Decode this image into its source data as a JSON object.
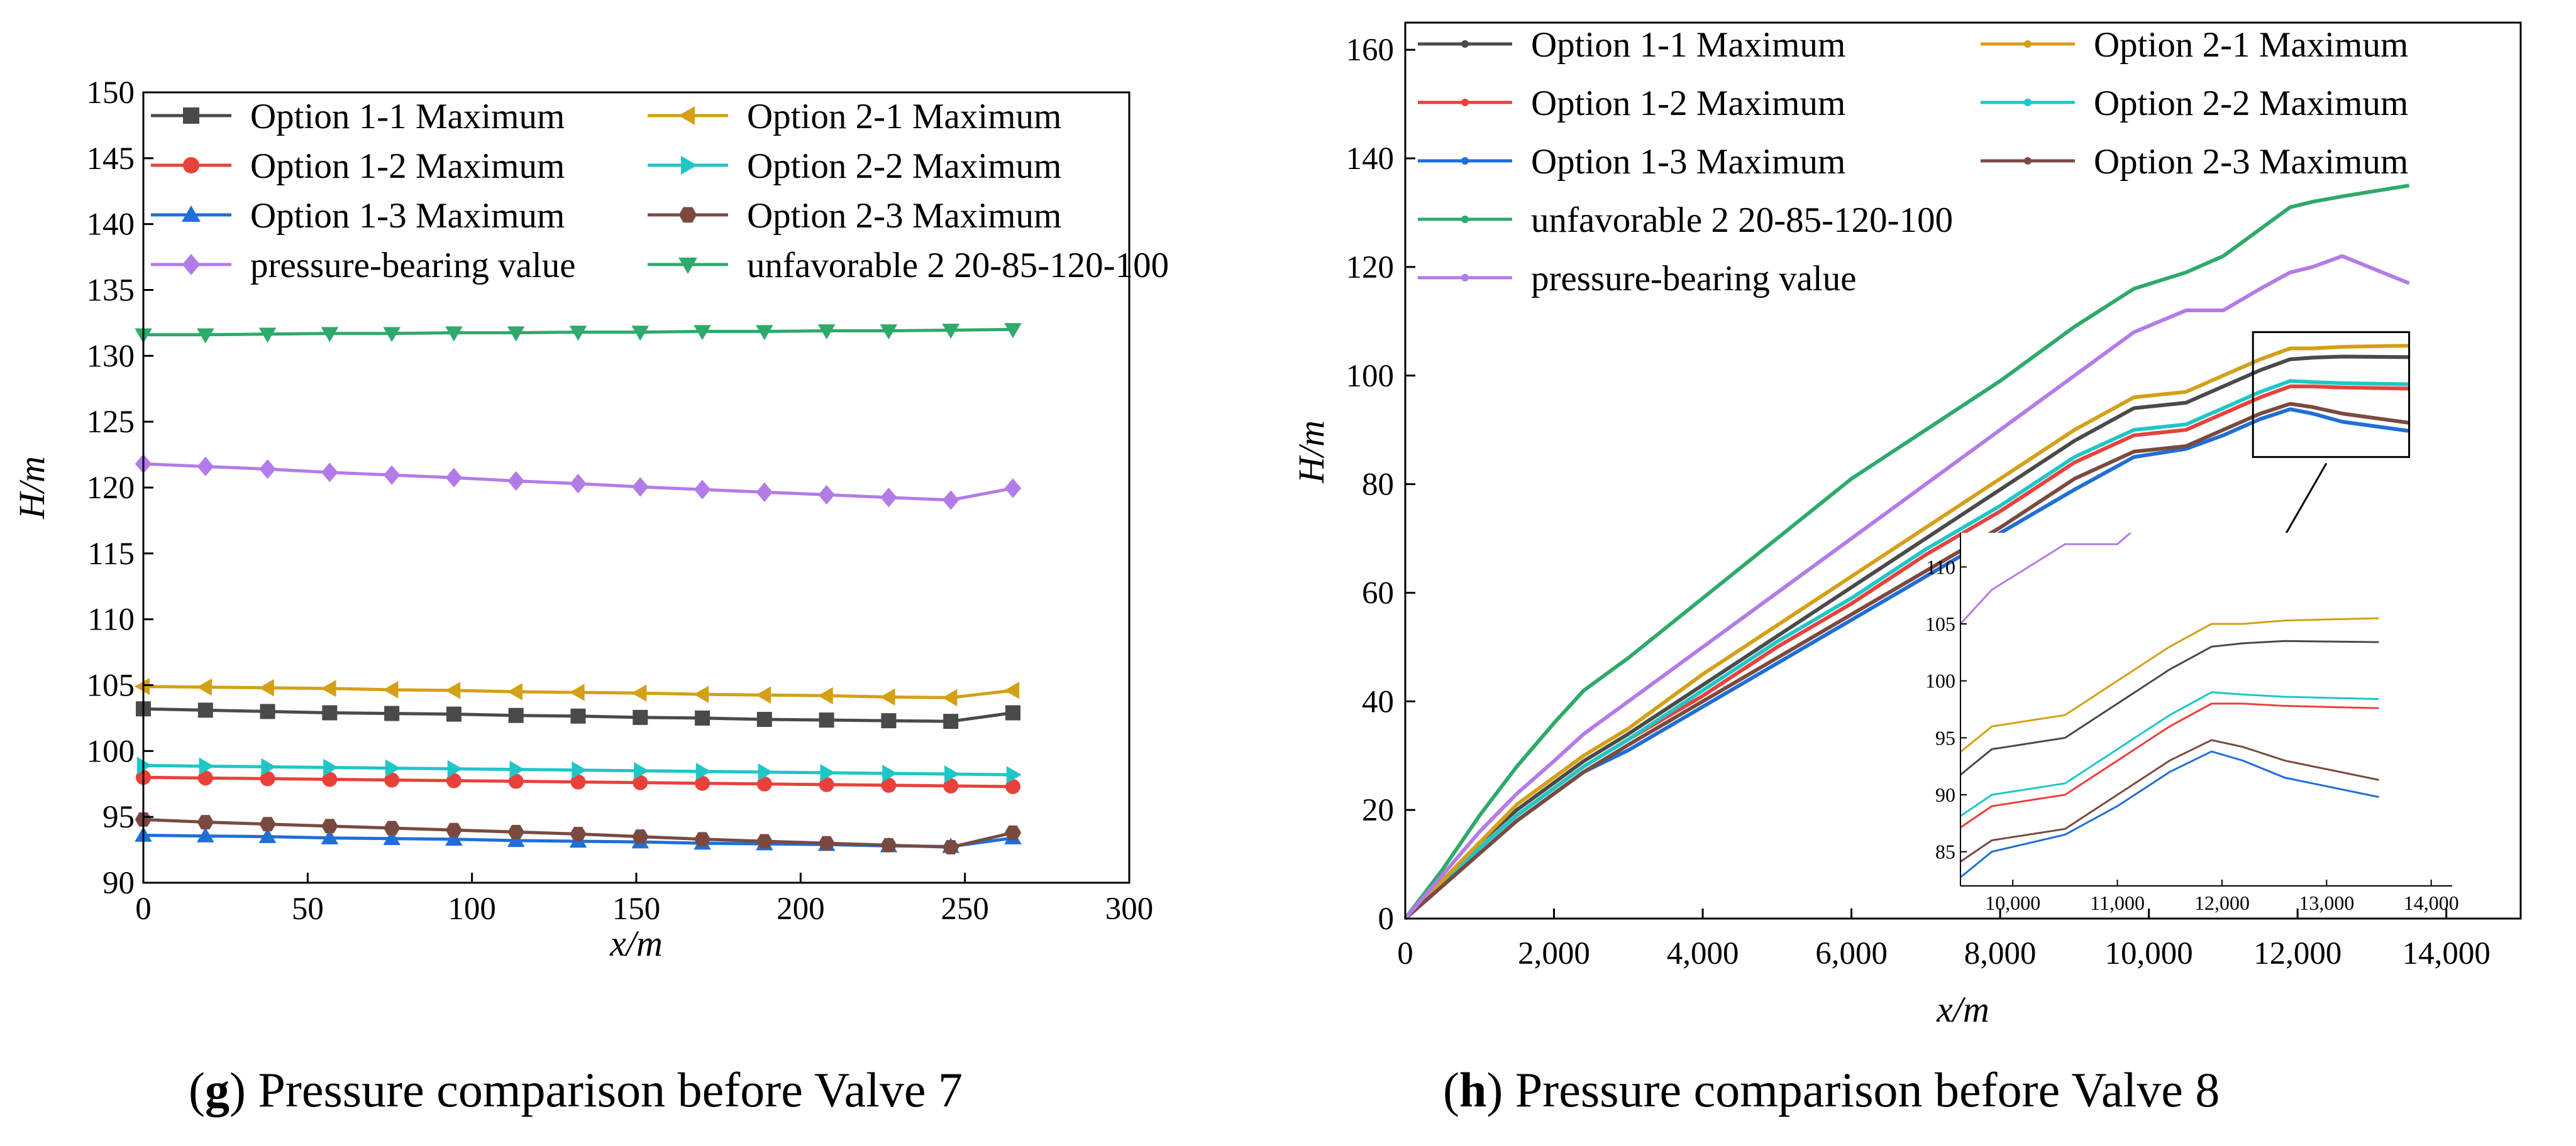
{
  "chart_data": [
    {
      "id": "g",
      "type": "line",
      "caption_letter": "g",
      "caption_text": " Pressure comparison before Valve 7",
      "xlabel": "x/m",
      "ylabel": "H/m",
      "xlim": [
        0,
        300
      ],
      "ylim": [
        90,
        150
      ],
      "x_ticks": [
        0,
        50,
        100,
        150,
        200,
        250,
        300
      ],
      "x_tick_labels": [
        "0",
        "50",
        "100",
        "150",
        "200",
        "250",
        "300"
      ],
      "y_ticks": [
        90,
        95,
        100,
        105,
        110,
        115,
        120,
        125,
        130,
        135,
        140,
        145,
        150
      ],
      "y_tick_labels": [
        "90",
        "95",
        "100",
        "105",
        "110",
        "115",
        "120",
        "125",
        "130",
        "135",
        "140",
        "145",
        "150"
      ],
      "x": [
        0,
        18.9,
        37.8,
        56.7,
        75.6,
        94.5,
        113.4,
        132.3,
        151.2,
        170.1,
        189.0,
        207.9,
        226.8,
        245.7,
        264.6
      ],
      "series": [
        {
          "name": "Option 1-1 Maximum",
          "color": "#4a4a4a",
          "marker": "square",
          "values": [
            103.2,
            103.1,
            103.0,
            102.9,
            102.85,
            102.8,
            102.7,
            102.65,
            102.55,
            102.5,
            102.4,
            102.35,
            102.3,
            102.25,
            102.9
          ]
        },
        {
          "name": "Option 1-2 Maximum",
          "color": "#e8413c",
          "marker": "circle",
          "values": [
            98.0,
            97.95,
            97.9,
            97.85,
            97.8,
            97.75,
            97.7,
            97.65,
            97.6,
            97.55,
            97.5,
            97.45,
            97.4,
            97.35,
            97.3
          ]
        },
        {
          "name": "Option 1-3 Maximum",
          "color": "#1f6fd6",
          "marker": "triangle-up",
          "values": [
            93.6,
            93.55,
            93.5,
            93.4,
            93.35,
            93.3,
            93.2,
            93.15,
            93.1,
            93.0,
            92.95,
            92.9,
            92.8,
            92.75,
            93.4
          ]
        },
        {
          "name": "Option 2-1 Maximum",
          "color": "#d4a017",
          "marker": "triangle-left",
          "values": [
            104.9,
            104.85,
            104.8,
            104.75,
            104.65,
            104.6,
            104.5,
            104.45,
            104.4,
            104.3,
            104.25,
            104.2,
            104.1,
            104.05,
            104.6
          ]
        },
        {
          "name": "Option 2-2 Maximum",
          "color": "#1fc6c6",
          "marker": "triangle-right",
          "values": [
            98.9,
            98.85,
            98.8,
            98.75,
            98.7,
            98.65,
            98.6,
            98.55,
            98.5,
            98.45,
            98.4,
            98.35,
            98.3,
            98.25,
            98.2
          ]
        },
        {
          "name": "Option 2-3 Maximum",
          "color": "#7a4a40",
          "marker": "hexagon",
          "values": [
            94.8,
            94.6,
            94.45,
            94.3,
            94.15,
            94.0,
            93.85,
            93.7,
            93.5,
            93.3,
            93.15,
            93.0,
            92.85,
            92.7,
            93.8
          ]
        },
        {
          "name": "pressure-bearing value",
          "color": "#b37be8",
          "marker": "diamond",
          "values": [
            121.8,
            121.6,
            121.4,
            121.15,
            120.95,
            120.75,
            120.5,
            120.3,
            120.05,
            119.85,
            119.65,
            119.45,
            119.25,
            119.05,
            119.95
          ]
        },
        {
          "name": "unfavorable 2 20-85-120-100",
          "color": "#2eaa6a",
          "marker": "triangle-down",
          "values": [
            131.6,
            131.6,
            131.65,
            131.7,
            131.7,
            131.75,
            131.75,
            131.8,
            131.8,
            131.85,
            131.85,
            131.9,
            131.9,
            131.95,
            132.0
          ]
        }
      ],
      "legend": {
        "placement": "top-left",
        "columns": 2
      }
    },
    {
      "id": "h",
      "type": "line",
      "caption_letter": "h",
      "caption_text": " Pressure comparison before Valve 8",
      "xlabel": "x/m",
      "ylabel": "H/m",
      "xlim": [
        0,
        15000
      ],
      "ylim": [
        0,
        165
      ],
      "x_ticks": [
        0,
        2000,
        4000,
        6000,
        8000,
        10000,
        12000,
        14000
      ],
      "x_tick_labels": [
        "0",
        "2,000",
        "4,000",
        "6,000",
        "8,000",
        "10,000",
        "12,000",
        "14,000"
      ],
      "y_ticks": [
        0,
        20,
        40,
        60,
        80,
        100,
        120,
        140,
        160
      ],
      "y_tick_labels": [
        "0",
        "20",
        "40",
        "60",
        "80",
        "100",
        "120",
        "140",
        "160"
      ],
      "x": [
        0,
        500,
        1000,
        1500,
        2000,
        2400,
        3000,
        4000,
        5000,
        6000,
        7000,
        8000,
        9000,
        9800,
        10500,
        11000,
        11500,
        11900,
        12200,
        12600,
        13500
      ],
      "series": [
        {
          "name": "Option 1-1 Maximum",
          "color": "#4a4a4a",
          "values": [
            0,
            7,
            14,
            20,
            25,
            29,
            34,
            43,
            52,
            61,
            70,
            79,
            88,
            94,
            95,
            98,
            101,
            103,
            103.3,
            103.5,
            103.4
          ]
        },
        {
          "name": "Option 1-2 Maximum",
          "color": "#e8413c",
          "values": [
            0,
            6,
            13,
            19,
            24,
            28,
            33,
            41,
            50,
            58,
            67,
            75,
            84,
            89,
            90,
            93,
            96,
            98,
            98,
            97.8,
            97.6
          ]
        },
        {
          "name": "Option 1-3 Maximum",
          "color": "#1f6fd6",
          "values": [
            0,
            6,
            12,
            18,
            23,
            27,
            31,
            39,
            47,
            55,
            63,
            71,
            79,
            85,
            86.5,
            89,
            92,
            93.8,
            93,
            91.5,
            89.8
          ]
        },
        {
          "name": "Option 2-1 Maximum",
          "color": "#d4a017",
          "values": [
            0,
            7,
            14,
            21,
            26,
            30,
            35,
            45,
            54,
            63,
            72,
            81,
            90,
            96,
            97,
            100,
            103,
            105,
            105,
            105.3,
            105.5
          ]
        },
        {
          "name": "Option 2-2 Maximum",
          "color": "#1fc6c6",
          "values": [
            0,
            6,
            13,
            19,
            24,
            28,
            33,
            42,
            51,
            59,
            68,
            76,
            85,
            90,
            91,
            94,
            97,
            99,
            98.8,
            98.6,
            98.4
          ]
        },
        {
          "name": "Option 2-3 Maximum",
          "color": "#7a4a40",
          "values": [
            0,
            6,
            12,
            18,
            23,
            27,
            32,
            40,
            48,
            56,
            64,
            72,
            81,
            86,
            87,
            90,
            93,
            94.8,
            94.2,
            93,
            91.3
          ]
        },
        {
          "name": "unfavorable 2 20-85-120-100",
          "color": "#2eaa6a",
          "values": [
            0,
            9,
            19,
            28,
            36,
            42,
            48,
            59,
            70,
            81,
            90,
            99,
            109,
            116,
            119,
            122,
            127,
            131,
            132,
            133,
            135
          ]
        },
        {
          "name": "pressure-bearing value",
          "color": "#b37be8",
          "values": [
            0,
            8,
            16,
            23,
            29,
            34,
            40,
            50,
            60,
            70,
            80,
            90,
            100,
            108,
            112,
            112,
            116,
            119,
            120,
            122,
            117
          ]
        }
      ],
      "legend": {
        "placement": "top-left",
        "columns": 2
      },
      "inset": {
        "xlim": [
          9500,
          14200
        ],
        "ylim": [
          82,
          113
        ],
        "x_tick_labels": [
          "10,000",
          "11,000",
          "12,000",
          "13,000",
          "14,000"
        ],
        "x_ticks": [
          10000,
          11000,
          12000,
          13000,
          14000
        ],
        "y_tick_labels": [
          "85",
          "90",
          "95",
          "100",
          "105",
          "110"
        ],
        "y_ticks": [
          85,
          90,
          95,
          100,
          105,
          110
        ],
        "zoom_region_x": [
          11400,
          13500
        ],
        "zoom_region_y": [
          85,
          108
        ]
      }
    }
  ]
}
